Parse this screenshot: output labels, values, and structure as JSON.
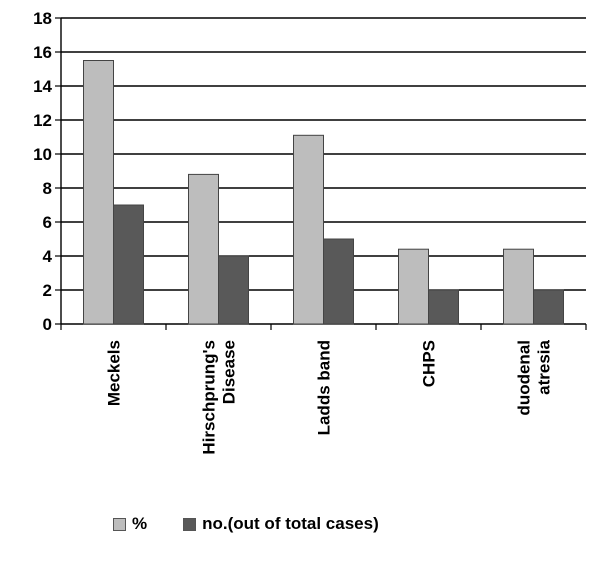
{
  "chart_data": {
    "type": "bar",
    "title": "",
    "xlabel": "",
    "ylabel": "",
    "categories": [
      [
        "Meckels"
      ],
      [
        "Hirschprung's",
        "Disease"
      ],
      [
        "Ladds band"
      ],
      [
        "CHPS"
      ],
      [
        "duodenal",
        "atresia"
      ]
    ],
    "series": [
      {
        "name": "%",
        "values": [
          15.5,
          8.8,
          11.1,
          4.4,
          4.4
        ],
        "color": "#bdbdbd"
      },
      {
        "name": "no.(out of total  cases)",
        "values": [
          7,
          4,
          5,
          2,
          2
        ],
        "color": "#595959"
      }
    ],
    "ylim": [
      0,
      18
    ],
    "yticks": [
      "0",
      "2",
      "4",
      "6",
      "8",
      "10",
      "12",
      "14",
      "16",
      "18"
    ],
    "grid": true,
    "legend_position": "bottom"
  }
}
